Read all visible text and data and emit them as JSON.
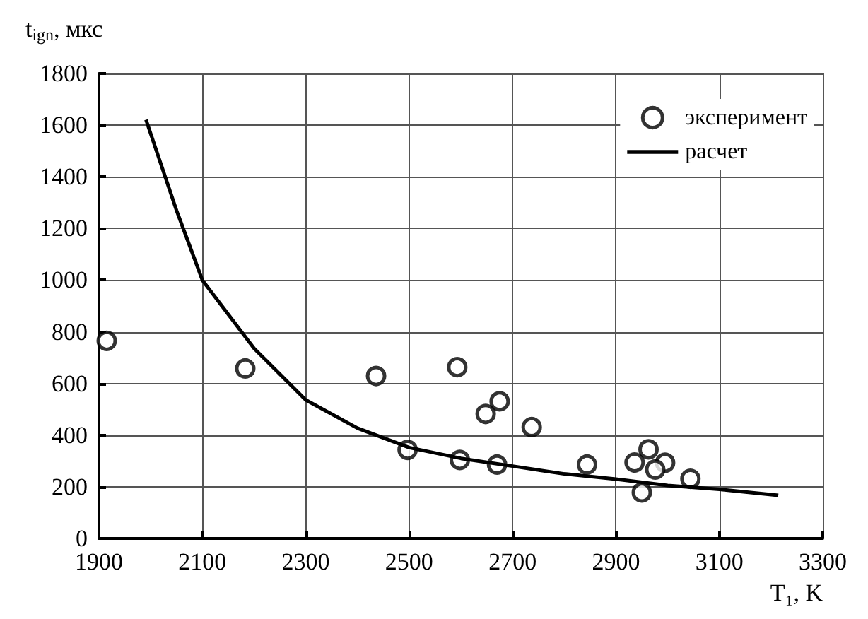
{
  "chart_data": {
    "type": "scatter",
    "xlabel": "T₁, K",
    "ylabel": "t$_{ign}$, мкс",
    "xlim": [
      1900,
      3300
    ],
    "xticks": [
      1900,
      2100,
      2300,
      2500,
      2700,
      2900,
      3100,
      3300
    ],
    "ylim": [
      0,
      1800
    ],
    "yticks": [
      0,
      200,
      400,
      600,
      800,
      1000,
      1200,
      1400,
      1600,
      1800
    ],
    "grid": true,
    "legend": "top right",
    "series": [
      {
        "name": "эксперимент",
        "marker": "circle",
        "color": "#000000",
        "x": [
          1915,
          2183,
          2436,
          2497,
          2598,
          2593,
          2648,
          2675,
          2737,
          2670,
          2844,
          2936,
          2963,
          2995,
          2976,
          2950,
          3044
        ],
        "values": [
          765,
          658,
          629,
          343,
          304,
          663,
          482,
          531,
          431,
          286,
          286,
          294,
          345,
          293,
          267,
          178,
          231
        ]
      },
      {
        "name": "расчет",
        "type": "line",
        "marker": "none",
        "color": "#000000",
        "x": [
          1991,
          2050,
          2100,
          2200,
          2300,
          2400,
          2500,
          2600,
          2700,
          2800,
          2900,
          3000,
          3100,
          3214
        ],
        "values": [
          1621,
          1270,
          1000,
          736,
          536,
          427,
          352,
          310,
          280,
          250,
          230,
          205,
          190,
          167
        ]
      }
    ]
  }
}
